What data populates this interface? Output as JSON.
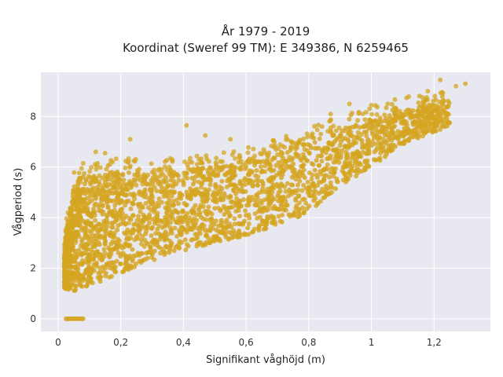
{
  "chart_data": {
    "type": "scatter",
    "title": "År 1979 - 2019",
    "subtitle": "Koordinat (Sweref 99 TM): E 349386, N 6259465",
    "xlabel": "Signifikant våghöjd (m)",
    "ylabel": "Vågperiod (s)",
    "xlim": [
      -0.055,
      1.38
    ],
    "ylim": [
      -0.5,
      9.75
    ],
    "x_ticks": [
      0,
      0.2,
      0.4,
      0.6,
      0.8,
      1,
      1.2
    ],
    "x_tick_labels": [
      "0",
      "0,2",
      "0,4",
      "0,6",
      "0,8",
      "1",
      "1,2"
    ],
    "y_ticks": [
      0,
      2,
      4,
      6,
      8
    ],
    "y_tick_labels": [
      "0",
      "2",
      "4",
      "6",
      "8"
    ],
    "grid": true,
    "background": "#e8e8f0",
    "grid_color": "#ffffff",
    "marker_color": "#d4a520",
    "band": {
      "x": [
        0.02,
        0.05,
        0.1,
        0.2,
        0.3,
        0.4,
        0.5,
        0.6,
        0.7,
        0.8,
        0.9,
        1.0,
        1.1,
        1.2,
        1.25
      ],
      "low": [
        1.2,
        1.1,
        1.3,
        1.8,
        2.3,
        2.7,
        3.0,
        3.3,
        3.7,
        4.2,
        5.2,
        6.0,
        6.9,
        7.4,
        7.6
      ],
      "high": [
        3.0,
        5.3,
        5.6,
        5.9,
        5.8,
        5.9,
        6.0,
        6.3,
        6.6,
        7.1,
        7.5,
        7.9,
        8.3,
        8.5,
        8.6
      ]
    },
    "outliers": [
      {
        "x": 0.41,
        "y": 7.65
      },
      {
        "x": 1.3,
        "y": 9.3
      },
      {
        "x": 1.22,
        "y": 9.45
      },
      {
        "x": 0.23,
        "y": 7.1
      },
      {
        "x": 0.15,
        "y": 6.55
      },
      {
        "x": 0.12,
        "y": 6.6
      },
      {
        "x": 0.93,
        "y": 8.5
      },
      {
        "x": 1.0,
        "y": 8.45
      },
      {
        "x": 1.27,
        "y": 9.2
      },
      {
        "x": 0.47,
        "y": 7.25
      },
      {
        "x": 0.55,
        "y": 7.1
      },
      {
        "x": 0.08,
        "y": 6.15
      },
      {
        "x": 0.02,
        "y": 1.5
      },
      {
        "x": 0.87,
        "y": 8.1
      },
      {
        "x": 1.18,
        "y": 9.0
      }
    ],
    "zero_cluster": {
      "x_min": 0.025,
      "x_max": 0.08,
      "y": 0
    }
  }
}
